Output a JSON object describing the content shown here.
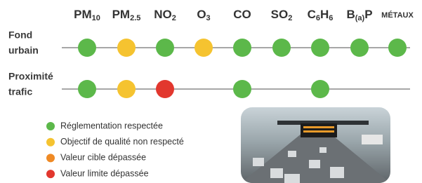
{
  "pollutants": [
    {
      "main": "PM",
      "sub": "10"
    },
    {
      "main": "PM",
      "sub": "2.5"
    },
    {
      "main": "NO",
      "sub": "2"
    },
    {
      "main": "O",
      "sub": "3"
    },
    {
      "main": "CO",
      "sub": null
    },
    {
      "main": "SO",
      "sub": "2"
    },
    {
      "main": "C",
      "sub": "6",
      "main2": "H",
      "sub2": "6"
    },
    {
      "main": "B",
      "sub": "(a)",
      "main2": "P"
    },
    {
      "main": "MÉTAUX",
      "sub": null
    }
  ],
  "rows": [
    {
      "label": [
        "Fond",
        "urbain"
      ],
      "levels": [
        0,
        1,
        0,
        1,
        0,
        0,
        0,
        0,
        0
      ]
    },
    {
      "label": [
        "Proximité",
        "trafic"
      ],
      "levels": [
        0,
        1,
        3,
        null,
        0,
        null,
        0,
        null,
        null
      ]
    }
  ],
  "legend": [
    {
      "label": "Réglementation respectée",
      "color": "#5cb84a"
    },
    {
      "label": "Objectif de qualité non respecté",
      "color": "#f5c330"
    },
    {
      "label": "Valeur cible dépassée",
      "color": "#ef8a25"
    },
    {
      "label": "Valeur limite dépassée",
      "color": "#e2372e"
    }
  ]
}
